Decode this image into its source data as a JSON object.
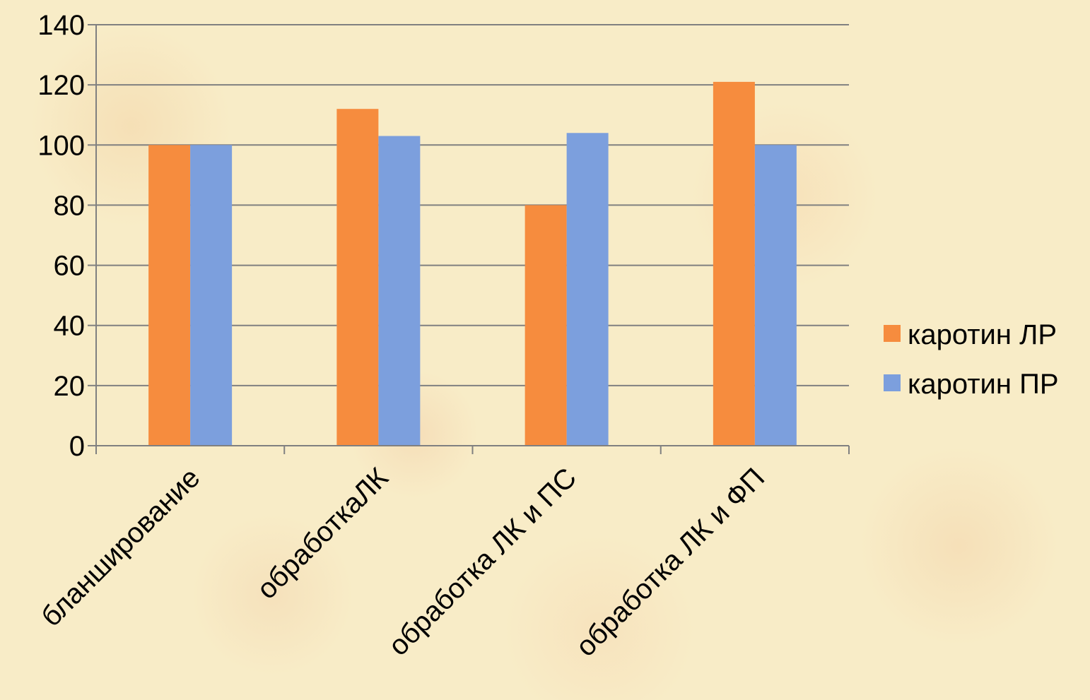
{
  "chart_data": {
    "type": "bar",
    "title": "",
    "xlabel": "",
    "ylabel": "",
    "categories": [
      "бланширование",
      "обработкаЛК",
      "обработка ЛК и ПС",
      "обработка ЛК и ФП"
    ],
    "series": [
      {
        "name": "каротин ЛР",
        "color": "#f68c3e",
        "values": [
          100,
          112,
          80,
          121
        ]
      },
      {
        "name": "каротин ПР",
        "color": "#7c9fdd",
        "values": [
          100,
          103,
          104,
          100
        ]
      }
    ],
    "ylim": [
      0,
      140
    ],
    "yticks": [
      0,
      20,
      40,
      60,
      80,
      100,
      120,
      140
    ],
    "grid": true,
    "legend_position": "right"
  }
}
